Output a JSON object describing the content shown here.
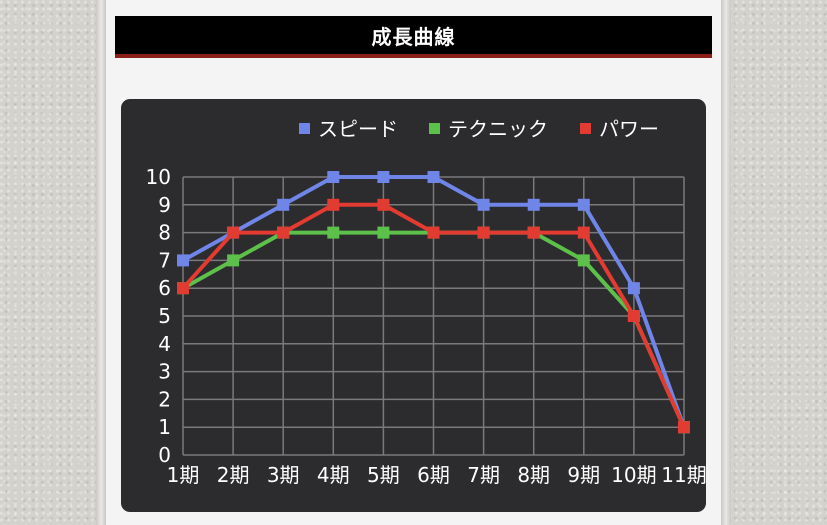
{
  "section": {
    "title": "成長曲線"
  },
  "colors": {
    "header_bg": "#000000",
    "header_border": "#8a1f1a",
    "chart_bg": "#2c2b2d",
    "grid": "#7a797b",
    "text": "#ffffff"
  },
  "chart_data": {
    "type": "line",
    "title": "",
    "xlabel": "",
    "ylabel": "",
    "categories": [
      "1期",
      "2期",
      "3期",
      "4期",
      "5期",
      "6期",
      "7期",
      "8期",
      "9期",
      "10期",
      "11期"
    ],
    "ylim": [
      0,
      10
    ],
    "yticks": [
      0,
      1,
      2,
      3,
      4,
      5,
      6,
      7,
      8,
      9,
      10
    ],
    "grid": true,
    "legend_position": "top-right",
    "series": [
      {
        "name": "スピード",
        "color": "#6f86e8",
        "values": [
          7,
          8,
          9,
          10,
          10,
          10,
          9,
          9,
          9,
          6,
          1
        ]
      },
      {
        "name": "テクニック",
        "color": "#5cc04a",
        "values": [
          6,
          7,
          8,
          8,
          8,
          8,
          8,
          8,
          7,
          5,
          1
        ]
      },
      {
        "name": "パワー",
        "color": "#e23b32",
        "values": [
          6,
          8,
          8,
          9,
          9,
          8,
          8,
          8,
          8,
          5,
          1
        ]
      }
    ]
  }
}
